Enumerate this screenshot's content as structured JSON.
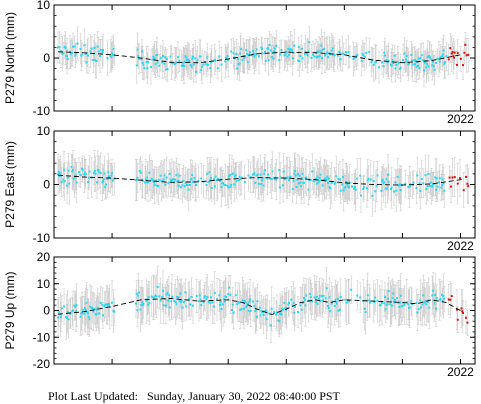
{
  "footer": {
    "label": "Plot Last Updated:",
    "value": "Sunday, January 30, 2022 08:40:00 PST"
  },
  "colors": {
    "point": "#29d8f0",
    "recent_point": "#e01010",
    "error_bar": "#c8c8c8",
    "trend": "#000000",
    "axes": "#000000"
  },
  "chart_data": [
    {
      "type": "scatter",
      "station": "P279",
      "ylabel": "P279 North (mm)",
      "ylim": [
        -10,
        10
      ],
      "yticks": [
        -10,
        0,
        10
      ],
      "xlim": [
        2015.0,
        2022.25
      ],
      "xtick_labels": [
        {
          "x": 2022.0,
          "label": "2022"
        }
      ],
      "data_gap": [
        2016.05,
        2016.4
      ],
      "recent_from": 2021.78,
      "error_bar_mm": 2.6,
      "noise_mm": 1.6,
      "series": [
        {
          "name": "trend",
          "x": [
            2015.0,
            2015.5,
            2016.0,
            2016.5,
            2017.0,
            2017.5,
            2018.0,
            2018.5,
            2019.0,
            2019.5,
            2020.0,
            2020.5,
            2021.0,
            2021.5,
            2022.0,
            2022.2
          ],
          "y": [
            1.2,
            1.0,
            0.6,
            0.0,
            -0.8,
            -0.9,
            -0.2,
            0.8,
            1.1,
            1.0,
            0.6,
            -0.4,
            -0.9,
            -0.5,
            0.6,
            1.1
          ]
        }
      ]
    },
    {
      "type": "scatter",
      "station": "P279",
      "ylabel": "P279 East (mm)",
      "ylim": [
        -10,
        10
      ],
      "yticks": [
        -10,
        0,
        10
      ],
      "xlim": [
        2015.0,
        2022.25
      ],
      "xtick_labels": [
        {
          "x": 2022.0,
          "label": "2022"
        }
      ],
      "data_gap": [
        2016.05,
        2016.4
      ],
      "recent_from": 2021.78,
      "error_bar_mm": 3.0,
      "noise_mm": 1.7,
      "series": [
        {
          "name": "trend",
          "x": [
            2015.0,
            2015.5,
            2016.0,
            2016.5,
            2017.0,
            2017.5,
            2018.0,
            2018.5,
            2019.0,
            2019.5,
            2020.0,
            2020.5,
            2021.0,
            2021.5,
            2022.0,
            2022.2
          ],
          "y": [
            1.8,
            1.4,
            1.2,
            0.8,
            0.4,
            0.5,
            1.0,
            1.3,
            1.2,
            0.9,
            0.3,
            0.0,
            -0.1,
            0.1,
            0.9,
            1.6
          ]
        }
      ]
    },
    {
      "type": "scatter",
      "station": "P279",
      "ylabel": "P279 Up (mm)",
      "ylim": [
        -20,
        20
      ],
      "yticks": [
        -20,
        -10,
        0,
        10,
        20
      ],
      "xlim": [
        2015.0,
        2022.25
      ],
      "xtick_labels": [
        {
          "x": 2022.0,
          "label": "2022"
        }
      ],
      "data_gap": [
        2016.05,
        2016.4
      ],
      "recent_from": 2021.78,
      "error_bar_mm": 6.5,
      "noise_mm": 3.5,
      "series": [
        {
          "name": "trend",
          "x": [
            2015.0,
            2015.5,
            2016.0,
            2016.5,
            2017.0,
            2017.5,
            2018.0,
            2018.25,
            2018.5,
            2018.75,
            2019.0,
            2019.25,
            2019.5,
            2019.75,
            2020.0,
            2020.5,
            2021.0,
            2021.25,
            2021.5,
            2021.75,
            2022.0,
            2022.2
          ],
          "y": [
            -1.5,
            -0.5,
            1.5,
            4.0,
            4.5,
            3.5,
            4.0,
            3.0,
            0.5,
            -1.5,
            0.5,
            3.0,
            4.0,
            3.0,
            4.0,
            3.5,
            3.0,
            2.5,
            4.0,
            3.0,
            0.0,
            -1.0
          ]
        }
      ]
    }
  ]
}
